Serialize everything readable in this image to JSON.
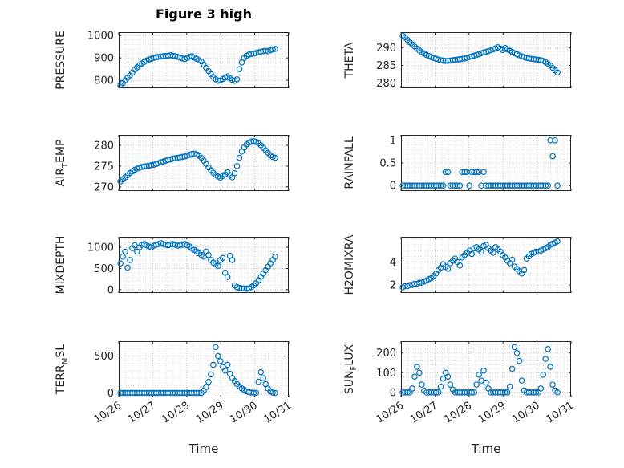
{
  "title": "Figure 3 high",
  "xlabel": "Time",
  "chart_data": {
    "type": "scatter",
    "layout": "4x2-grid",
    "marker_color": "#0072BD",
    "grid": "minor-dotted",
    "xlim": [
      26,
      31
    ],
    "xticks": [
      26,
      27,
      28,
      29,
      30,
      31
    ],
    "xticklabels": [
      "10/26",
      "10/27",
      "10/28",
      "10/29",
      "10/30",
      "10/31"
    ],
    "x_minor_step": 0.2,
    "x": [
      26.05,
      26.12,
      26.19,
      26.26,
      26.33,
      26.4,
      26.47,
      26.54,
      26.61,
      26.68,
      26.75,
      26.82,
      26.89,
      26.96,
      27.03,
      27.1,
      27.17,
      27.24,
      27.31,
      27.38,
      27.45,
      27.52,
      27.59,
      27.66,
      27.73,
      27.8,
      27.87,
      27.94,
      28.01,
      28.08,
      28.15,
      28.22,
      28.29,
      28.36,
      28.43,
      28.5,
      28.57,
      28.64,
      28.71,
      28.78,
      28.85,
      28.92,
      28.99,
      29.06,
      29.13,
      29.2,
      29.27,
      29.34,
      29.41,
      29.48,
      29.55,
      29.62,
      29.69,
      29.76,
      29.83,
      29.9,
      29.97,
      30.04,
      30.11,
      30.18,
      30.25,
      30.32,
      30.39,
      30.46,
      30.53,
      30.6
    ],
    "subplots": [
      {
        "name": "pressure",
        "ylabel": "PRESSURE",
        "yticks": [
          800,
          900,
          1000
        ],
        "ylim": [
          765,
          1015
        ],
        "y_minor_step": 20,
        "y": [
          778,
          788,
          800,
          812,
          822,
          835,
          848,
          858,
          868,
          875,
          882,
          888,
          893,
          897,
          900,
          903,
          905,
          906,
          908,
          909,
          910,
          912,
          910,
          908,
          905,
          902,
          898,
          895,
          900,
          905,
          908,
          902,
          896,
          890,
          884,
          870,
          856,
          842,
          828,
          815,
          805,
          798,
          800,
          806,
          812,
          818,
          810,
          802,
          798,
          805,
          850,
          880,
          900,
          910,
          915,
          918,
          920,
          922,
          925,
          928,
          930,
          932,
          930,
          935,
          938,
          940
        ]
      },
      {
        "name": "theta",
        "ylabel": "THETA",
        "yticks": [
          280,
          285,
          290
        ],
        "ylim": [
          278.5,
          294.5
        ],
        "y_minor_step": 1,
        "y": [
          293.5,
          293.0,
          292.3,
          291.6,
          291.0,
          290.4,
          289.8,
          289.3,
          288.8,
          288.4,
          288.0,
          287.7,
          287.4,
          287.1,
          286.9,
          286.7,
          286.5,
          286.4,
          286.3,
          286.3,
          286.4,
          286.5,
          286.6,
          286.7,
          286.8,
          286.9,
          287.0,
          287.2,
          287.4,
          287.6,
          287.8,
          288.0,
          288.2,
          288.5,
          288.7,
          288.9,
          289.1,
          289.3,
          289.6,
          289.9,
          290.2,
          289.8,
          289.4,
          290.0,
          289.6,
          289.2,
          288.8,
          288.5,
          288.2,
          287.9,
          287.6,
          287.4,
          287.2,
          287.0,
          286.9,
          286.8,
          286.7,
          286.6,
          286.5,
          286.3,
          286.0,
          285.5,
          285.0,
          284.3,
          283.6,
          283.0
        ]
      },
      {
        "name": "air-temp",
        "ylabel": "AIR_TEMP",
        "yticks": [
          270,
          275,
          280
        ],
        "ylim": [
          269,
          282.5
        ],
        "y_minor_step": 1,
        "y": [
          271.3,
          271.8,
          272.3,
          272.8,
          273.3,
          273.7,
          274.1,
          274.4,
          274.6,
          274.8,
          274.9,
          275.0,
          275.1,
          275.2,
          275.3,
          275.5,
          275.7,
          275.9,
          276.1,
          276.3,
          276.5,
          276.6,
          276.8,
          276.9,
          277.0,
          277.1,
          277.2,
          277.3,
          277.5,
          277.7,
          277.9,
          278.0,
          277.8,
          277.5,
          277.0,
          276.3,
          275.5,
          274.7,
          274.0,
          273.4,
          272.9,
          272.5,
          272.2,
          272.6,
          273.0,
          273.5,
          272.8,
          272.3,
          273.3,
          275.0,
          277.0,
          278.5,
          279.5,
          280.2,
          280.6,
          280.9,
          281.0,
          280.8,
          280.5,
          280.0,
          279.4,
          278.8,
          278.2,
          277.6,
          277.2,
          277.0
        ]
      },
      {
        "name": "rainfall",
        "ylabel": "RAINFALL",
        "yticks": [
          0,
          0.5,
          1
        ],
        "yticklabels": [
          "0",
          "0.5",
          "1"
        ],
        "ylim": [
          -0.12,
          1.12
        ],
        "y_minor_step": 0.1,
        "y": [
          0,
          0,
          0,
          0,
          0,
          0,
          0,
          0,
          0,
          0,
          0,
          0,
          0,
          0,
          0,
          0,
          0,
          0,
          0.3,
          0.3,
          0,
          0,
          0,
          0,
          0,
          0.3,
          0.3,
          0.3,
          0,
          0.3,
          0.3,
          0.3,
          0.3,
          0,
          0.3,
          0,
          0,
          0,
          0,
          0,
          0,
          0,
          0,
          0,
          0,
          0,
          0,
          0,
          0,
          0,
          0,
          0,
          0,
          0,
          0,
          0,
          0,
          0,
          0,
          0,
          0,
          0,
          1,
          0.65,
          1,
          0
        ]
      },
      {
        "name": "mixdepth",
        "ylabel": "MIXDEPTH",
        "yticks": [
          0,
          500,
          1000
        ],
        "ylim": [
          -80,
          1250
        ],
        "y_minor_step": 100,
        "y": [
          620,
          780,
          900,
          520,
          700,
          980,
          1050,
          900,
          1000,
          1060,
          1080,
          1050,
          1020,
          1000,
          1040,
          1060,
          1080,
          1100,
          1080,
          1060,
          1050,
          1070,
          1080,
          1060,
          1040,
          1050,
          1060,
          1080,
          1050,
          1020,
          980,
          940,
          900,
          860,
          820,
          780,
          900,
          820,
          700,
          640,
          600,
          560,
          700,
          750,
          400,
          300,
          800,
          700,
          100,
          60,
          40,
          30,
          25,
          20,
          30,
          60,
          100,
          150,
          220,
          300,
          380,
          460,
          540,
          620,
          700,
          780
        ]
      },
      {
        "name": "h2omixra",
        "ylabel": "H2OMIXRA",
        "yticks": [
          2,
          4
        ],
        "ylim": [
          1.3,
          6.2
        ],
        "y_minor_step": 0.5,
        "y": [
          1.8,
          1.9,
          1.9,
          2.0,
          2.0,
          2.1,
          2.1,
          2.2,
          2.2,
          2.3,
          2.4,
          2.5,
          2.6,
          2.8,
          3.0,
          3.3,
          3.5,
          3.8,
          3.6,
          3.4,
          3.9,
          4.1,
          4.3,
          4.0,
          3.7,
          4.4,
          4.6,
          4.8,
          5.0,
          4.7,
          5.2,
          5.3,
          5.1,
          4.9,
          5.4,
          5.5,
          5.2,
          5.0,
          4.8,
          5.3,
          5.1,
          4.9,
          4.6,
          4.4,
          4.1,
          3.9,
          4.2,
          3.6,
          3.4,
          3.2,
          3.0,
          3.3,
          4.3,
          4.5,
          4.7,
          4.8,
          4.9,
          4.9,
          5.0,
          5.1,
          5.2,
          5.3,
          5.5,
          5.6,
          5.7,
          5.8
        ]
      },
      {
        "name": "terr-msl",
        "ylabel": "TERR_MSL",
        "yticks": [
          0,
          500
        ],
        "ylim": [
          -60,
          700
        ],
        "y_minor_step": 100,
        "y": [
          0,
          0,
          0,
          0,
          0,
          0,
          0,
          0,
          0,
          0,
          0,
          0,
          0,
          0,
          0,
          0,
          0,
          0,
          0,
          0,
          0,
          0,
          0,
          0,
          0,
          0,
          0,
          0,
          0,
          0,
          0,
          0,
          0,
          0,
          0,
          30,
          80,
          150,
          250,
          380,
          620,
          500,
          430,
          350,
          300,
          380,
          260,
          200,
          160,
          120,
          90,
          60,
          40,
          20,
          10,
          5,
          0,
          0,
          150,
          280,
          200,
          120,
          60,
          20,
          5,
          0
        ]
      },
      {
        "name": "sun-flux",
        "ylabel": "SUN_FLUX",
        "yticks": [
          0,
          100,
          200
        ],
        "ylim": [
          -25,
          260
        ],
        "y_minor_step": 20,
        "y": [
          0,
          0,
          0,
          0,
          20,
          80,
          130,
          100,
          40,
          10,
          0,
          0,
          0,
          0,
          0,
          0,
          30,
          70,
          100,
          80,
          40,
          15,
          0,
          0,
          0,
          0,
          0,
          0,
          0,
          0,
          0,
          40,
          90,
          60,
          110,
          50,
          20,
          0,
          0,
          0,
          0,
          0,
          0,
          0,
          0,
          30,
          120,
          230,
          200,
          160,
          60,
          10,
          0,
          0,
          0,
          0,
          0,
          0,
          20,
          90,
          170,
          220,
          130,
          40,
          10,
          0
        ]
      }
    ]
  }
}
